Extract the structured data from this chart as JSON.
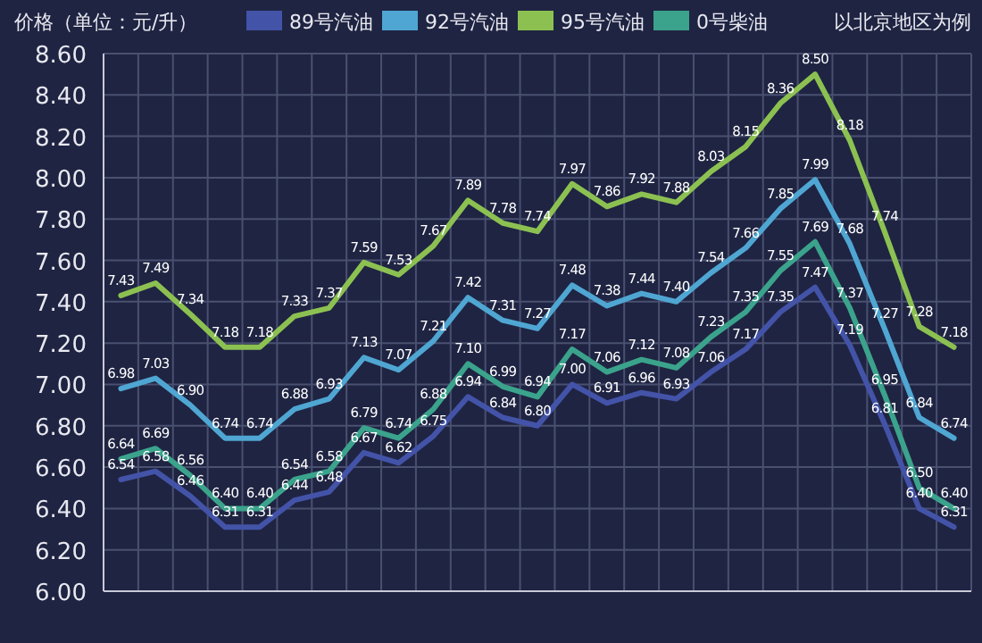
{
  "chart_data": {
    "type": "line",
    "ylabel": "价格（单位：元/升）",
    "annotations": [
      "以北京地区为例"
    ],
    "categories": [
      null,
      null,
      null,
      null,
      null,
      null,
      null,
      null,
      null,
      null,
      null,
      null,
      null,
      null,
      null,
      null,
      null,
      null,
      null,
      null,
      null,
      null,
      null,
      null,
      null
    ],
    "series": [
      {
        "name": "89号汽油",
        "color": "#4353a8",
        "values": [
          6.54,
          6.58,
          6.46,
          6.31,
          6.31,
          6.44,
          6.48,
          6.67,
          6.62,
          6.75,
          6.94,
          6.84,
          6.8,
          7.0,
          6.91,
          6.96,
          6.93,
          7.06,
          7.17,
          7.35,
          7.47,
          7.19,
          6.81,
          6.4,
          6.31
        ],
        "value_labels": [
          "6.54",
          "6.58",
          "6.46",
          "6.31",
          "6.31",
          "6.44",
          "6.48",
          "6.67",
          "6.62",
          "6.75",
          "6.94",
          "6.84",
          "6.80",
          "7.00",
          "6.91",
          "6.96",
          "6.93",
          "7.06",
          "7.17",
          "7.35",
          "7.47",
          "7.19",
          "6.81",
          "6.40",
          "6.31"
        ]
      },
      {
        "name": "92号汽油",
        "color": "#4fa6d2",
        "values": [
          6.98,
          7.03,
          6.9,
          6.74,
          6.74,
          6.88,
          6.93,
          7.13,
          7.07,
          7.21,
          7.42,
          7.31,
          7.27,
          7.48,
          7.38,
          7.44,
          7.4,
          7.54,
          7.66,
          7.85,
          7.99,
          7.68,
          7.27,
          6.84,
          6.74
        ],
        "value_labels": [
          "6.98",
          "7.03",
          "6.90",
          "6.74",
          "6.74",
          "6.88",
          "6.93",
          "7.13",
          "7.07",
          "7.21",
          "7.42",
          "7.31",
          "7.27",
          "7.48",
          "7.38",
          "7.44",
          "7.40",
          "7.54",
          "7.66",
          "7.85",
          "7.99",
          "7.68",
          "7.27",
          "6.84",
          "6.74"
        ]
      },
      {
        "name": "95号汽油",
        "color": "#8cc152",
        "values": [
          7.43,
          7.49,
          7.34,
          7.18,
          7.18,
          7.33,
          7.37,
          7.59,
          7.53,
          7.67,
          7.89,
          7.78,
          7.74,
          7.97,
          7.86,
          7.92,
          7.88,
          8.03,
          8.15,
          8.36,
          8.5,
          8.18,
          7.74,
          7.28,
          7.18
        ],
        "value_labels": [
          "7.43",
          "7.49",
          "7.34",
          "7.18",
          "7.18",
          "7.33",
          "7.37",
          "7.59",
          "7.53",
          "7.67",
          "7.89",
          "7.78",
          "7.74",
          "7.97",
          "7.86",
          "7.92",
          "7.88",
          "8.03",
          "8.15",
          "8.36",
          "8.50",
          "8.18",
          "7.74",
          "7.28",
          "7.18"
        ]
      },
      {
        "name": "0号柴油",
        "color": "#3ba38c",
        "values": [
          6.64,
          6.69,
          6.56,
          6.4,
          6.4,
          6.54,
          6.58,
          6.79,
          6.74,
          6.88,
          7.1,
          6.99,
          6.94,
          7.17,
          7.06,
          7.12,
          7.08,
          7.23,
          7.35,
          7.55,
          7.69,
          7.37,
          6.95,
          6.5,
          6.4
        ],
        "value_labels": [
          "6.64",
          "6.69",
          "6.56",
          "6.40",
          "6.40",
          "6.54",
          "6.58",
          "6.79",
          "6.74",
          "6.88",
          "7.10",
          "6.99",
          "6.94",
          "7.17",
          "7.06",
          "7.12",
          "7.08",
          "7.23",
          "7.35",
          "7.55",
          "7.69",
          "7.37",
          "6.95",
          "6.50",
          "6.40"
        ]
      }
    ],
    "ylim": [
      6,
      8.6
    ],
    "yticks": [
      {
        "value": 6,
        "label": "6.00"
      },
      {
        "value": 6.2,
        "label": "6.20"
      },
      {
        "value": 6.4,
        "label": "6.40"
      },
      {
        "value": 6.6,
        "label": "6.60"
      },
      {
        "value": 6.8,
        "label": "6.80"
      },
      {
        "value": 7,
        "label": "7.00"
      },
      {
        "value": 7.2,
        "label": "7.20"
      },
      {
        "value": 7.4,
        "label": "7.40"
      },
      {
        "value": 7.6,
        "label": "7.60"
      },
      {
        "value": 7.8,
        "label": "7.80"
      },
      {
        "value": 8,
        "label": "8.00"
      },
      {
        "value": 8.2,
        "label": "8.20"
      },
      {
        "value": 8.4,
        "label": "8.40"
      },
      {
        "value": 8.6,
        "label": "8.60"
      }
    ],
    "grid": true,
    "legend": "top",
    "marker": "none",
    "line_style": "solid"
  }
}
